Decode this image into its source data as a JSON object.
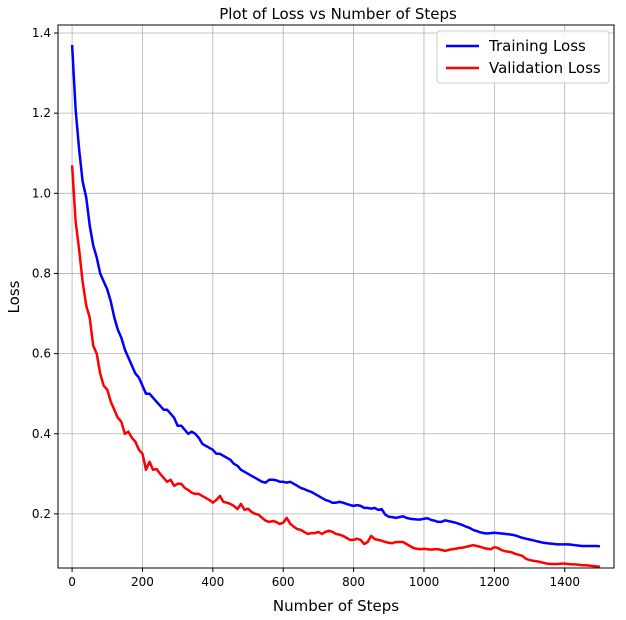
{
  "chart_data": {
    "type": "line",
    "title": "Plot of Loss vs Number of Steps",
    "xlabel": "Number of Steps",
    "ylabel": "Loss",
    "xlim": [
      -40,
      1540
    ],
    "ylim": [
      0.065,
      1.42
    ],
    "xticks": [
      0,
      200,
      400,
      600,
      800,
      1000,
      1200,
      1400
    ],
    "yticks": [
      0.2,
      0.4,
      0.6,
      0.8,
      1.0,
      1.2,
      1.4
    ],
    "ytick_labels": [
      "0.2",
      "0.4",
      "0.6",
      "0.8",
      "1.0",
      "1.2",
      "1.4"
    ],
    "grid": true,
    "legend_position": "top-right",
    "series": [
      {
        "name": "Training Loss",
        "color": "#0000ff",
        "x": [
          0,
          10,
          20,
          30,
          40,
          50,
          60,
          70,
          80,
          90,
          100,
          110,
          120,
          130,
          140,
          150,
          160,
          170,
          180,
          190,
          200,
          210,
          220,
          230,
          240,
          250,
          260,
          270,
          280,
          290,
          300,
          310,
          320,
          330,
          340,
          350,
          360,
          370,
          380,
          390,
          400,
          410,
          420,
          430,
          440,
          450,
          460,
          470,
          480,
          490,
          500,
          510,
          520,
          530,
          540,
          550,
          560,
          570,
          580,
          590,
          600,
          610,
          620,
          630,
          640,
          650,
          660,
          670,
          680,
          690,
          700,
          710,
          720,
          730,
          740,
          750,
          760,
          770,
          780,
          790,
          800,
          810,
          820,
          830,
          840,
          850,
          860,
          870,
          880,
          890,
          900,
          910,
          920,
          930,
          940,
          950,
          960,
          970,
          980,
          990,
          1000,
          1010,
          1020,
          1030,
          1040,
          1050,
          1060,
          1070,
          1080,
          1090,
          1100,
          1110,
          1120,
          1130,
          1140,
          1150,
          1160,
          1170,
          1180,
          1190,
          1200,
          1210,
          1220,
          1230,
          1240,
          1250,
          1260,
          1270,
          1280,
          1290,
          1300,
          1310,
          1320,
          1330,
          1340,
          1350,
          1360,
          1370,
          1380,
          1390,
          1400,
          1410,
          1420,
          1430,
          1440,
          1450,
          1460,
          1470,
          1480,
          1490,
          1500
        ],
        "y": [
          1.37,
          1.21,
          1.11,
          1.03,
          0.99,
          0.92,
          0.87,
          0.84,
          0.8,
          0.78,
          0.76,
          0.73,
          0.69,
          0.66,
          0.64,
          0.61,
          0.59,
          0.57,
          0.55,
          0.54,
          0.52,
          0.5,
          0.5,
          0.49,
          0.48,
          0.47,
          0.46,
          0.46,
          0.45,
          0.44,
          0.42,
          0.42,
          0.41,
          0.4,
          0.405,
          0.4,
          0.39,
          0.375,
          0.37,
          0.365,
          0.36,
          0.35,
          0.35,
          0.345,
          0.34,
          0.335,
          0.325,
          0.32,
          0.31,
          0.305,
          0.3,
          0.295,
          0.29,
          0.285,
          0.28,
          0.278,
          0.285,
          0.285,
          0.284,
          0.28,
          0.28,
          0.278,
          0.28,
          0.275,
          0.27,
          0.265,
          0.262,
          0.258,
          0.255,
          0.25,
          0.245,
          0.24,
          0.235,
          0.232,
          0.228,
          0.228,
          0.23,
          0.228,
          0.225,
          0.222,
          0.22,
          0.222,
          0.22,
          0.215,
          0.215,
          0.213,
          0.215,
          0.21,
          0.212,
          0.198,
          0.193,
          0.192,
          0.19,
          0.192,
          0.194,
          0.19,
          0.188,
          0.187,
          0.186,
          0.186,
          0.188,
          0.189,
          0.185,
          0.183,
          0.18,
          0.18,
          0.184,
          0.182,
          0.18,
          0.178,
          0.175,
          0.172,
          0.168,
          0.165,
          0.16,
          0.157,
          0.154,
          0.152,
          0.151,
          0.152,
          0.153,
          0.152,
          0.151,
          0.15,
          0.149,
          0.148,
          0.146,
          0.143,
          0.14,
          0.138,
          0.136,
          0.134,
          0.132,
          0.13,
          0.128,
          0.127,
          0.126,
          0.125,
          0.124,
          0.124,
          0.124,
          0.124,
          0.123,
          0.122,
          0.121,
          0.12,
          0.12,
          0.12,
          0.12,
          0.12,
          0.119
        ]
      },
      {
        "name": "Validation Loss",
        "color": "#ff0000",
        "x": [
          0,
          10,
          20,
          30,
          40,
          50,
          60,
          70,
          80,
          90,
          100,
          110,
          120,
          130,
          140,
          150,
          160,
          170,
          180,
          190,
          200,
          210,
          220,
          230,
          240,
          250,
          260,
          270,
          280,
          290,
          300,
          310,
          320,
          330,
          340,
          350,
          360,
          370,
          380,
          390,
          400,
          410,
          420,
          430,
          440,
          450,
          460,
          470,
          480,
          490,
          500,
          510,
          520,
          530,
          540,
          550,
          560,
          570,
          580,
          590,
          600,
          610,
          620,
          630,
          640,
          650,
          660,
          670,
          680,
          690,
          700,
          710,
          720,
          730,
          740,
          750,
          760,
          770,
          780,
          790,
          800,
          810,
          820,
          830,
          840,
          850,
          860,
          870,
          880,
          890,
          900,
          910,
          920,
          930,
          940,
          950,
          960,
          970,
          980,
          990,
          1000,
          1010,
          1020,
          1030,
          1040,
          1050,
          1060,
          1070,
          1080,
          1090,
          1100,
          1110,
          1120,
          1130,
          1140,
          1150,
          1160,
          1170,
          1180,
          1190,
          1200,
          1210,
          1220,
          1230,
          1240,
          1250,
          1260,
          1270,
          1280,
          1290,
          1300,
          1310,
          1320,
          1330,
          1340,
          1350,
          1360,
          1370,
          1380,
          1390,
          1400,
          1410,
          1420,
          1430,
          1440,
          1450,
          1460,
          1470,
          1480,
          1490,
          1500
        ],
        "y": [
          1.07,
          0.93,
          0.86,
          0.78,
          0.72,
          0.69,
          0.62,
          0.6,
          0.55,
          0.52,
          0.51,
          0.48,
          0.46,
          0.44,
          0.43,
          0.4,
          0.405,
          0.39,
          0.38,
          0.36,
          0.35,
          0.31,
          0.33,
          0.31,
          0.312,
          0.3,
          0.29,
          0.28,
          0.285,
          0.27,
          0.275,
          0.275,
          0.265,
          0.26,
          0.253,
          0.25,
          0.25,
          0.245,
          0.24,
          0.235,
          0.228,
          0.235,
          0.245,
          0.23,
          0.228,
          0.225,
          0.22,
          0.212,
          0.225,
          0.21,
          0.213,
          0.205,
          0.2,
          0.198,
          0.19,
          0.183,
          0.18,
          0.182,
          0.18,
          0.175,
          0.178,
          0.19,
          0.175,
          0.168,
          0.162,
          0.16,
          0.155,
          0.15,
          0.152,
          0.152,
          0.155,
          0.15,
          0.155,
          0.158,
          0.155,
          0.15,
          0.148,
          0.145,
          0.14,
          0.135,
          0.135,
          0.138,
          0.135,
          0.125,
          0.13,
          0.145,
          0.137,
          0.135,
          0.133,
          0.13,
          0.128,
          0.127,
          0.13,
          0.13,
          0.13,
          0.125,
          0.12,
          0.115,
          0.113,
          0.112,
          0.113,
          0.112,
          0.111,
          0.112,
          0.112,
          0.11,
          0.108,
          0.11,
          0.112,
          0.113,
          0.115,
          0.116,
          0.118,
          0.12,
          0.122,
          0.12,
          0.118,
          0.115,
          0.113,
          0.112,
          0.117,
          0.115,
          0.11,
          0.107,
          0.106,
          0.104,
          0.1,
          0.098,
          0.095,
          0.088,
          0.085,
          0.083,
          0.082,
          0.08,
          0.078,
          0.076,
          0.075,
          0.075,
          0.075,
          0.076,
          0.076,
          0.075,
          0.074,
          0.074,
          0.073,
          0.072,
          0.072,
          0.071,
          0.07,
          0.069,
          0.068
        ]
      }
    ]
  }
}
